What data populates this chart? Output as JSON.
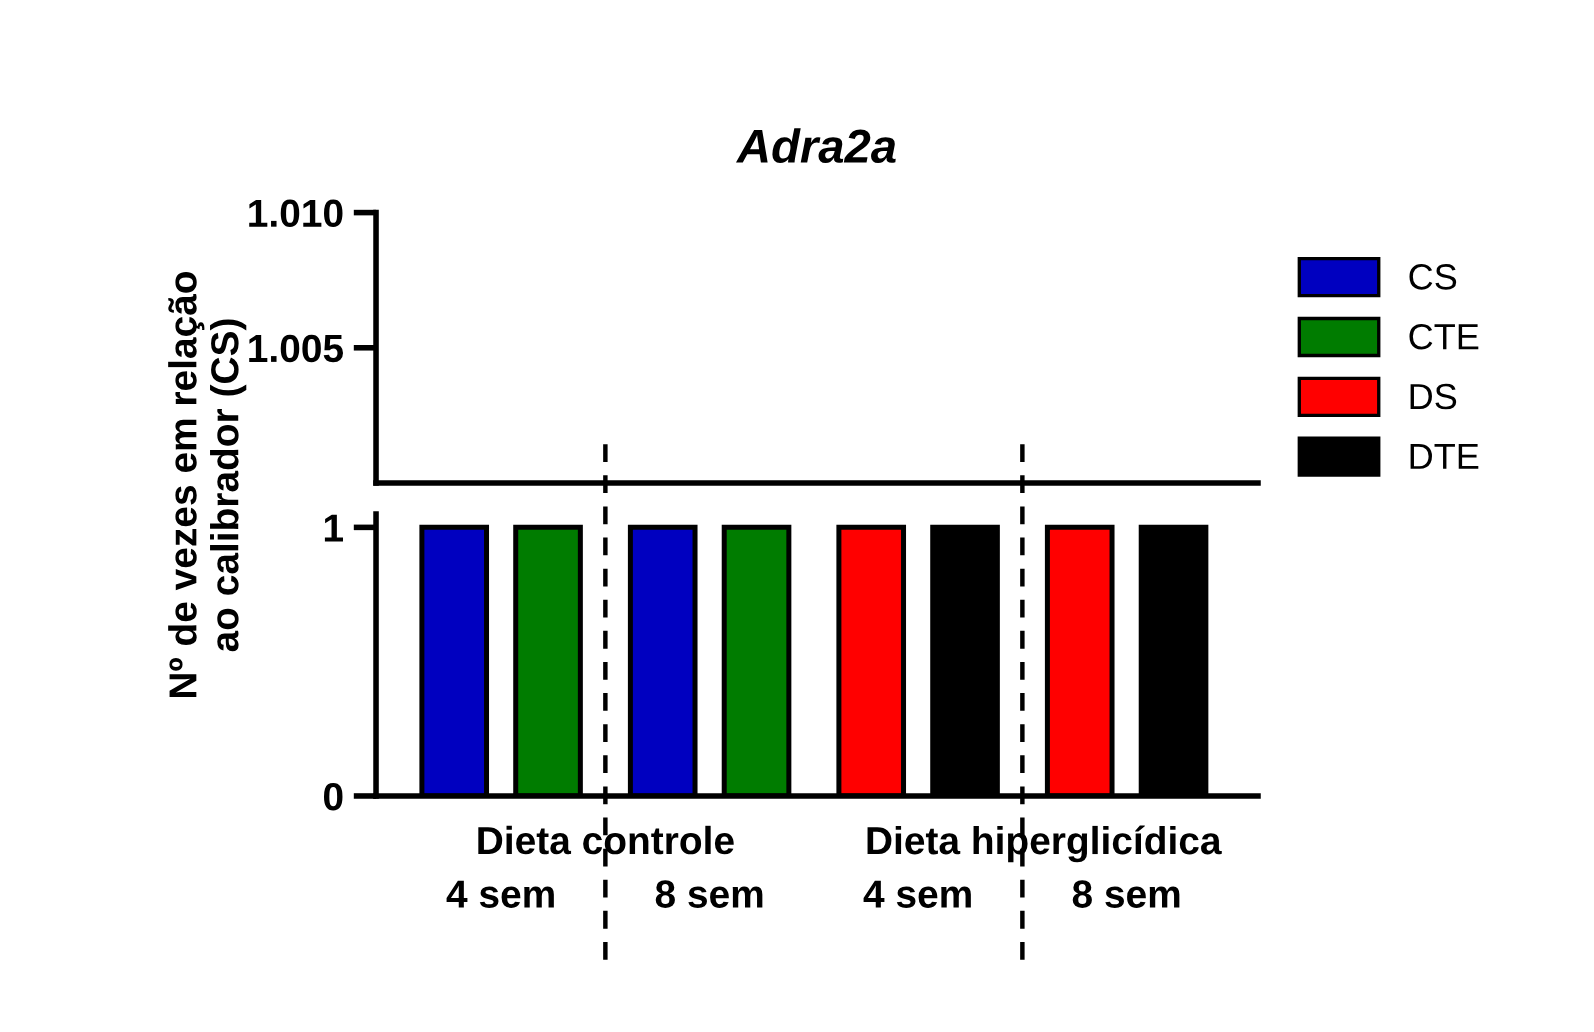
{
  "chart_data": [
    {
      "type": "bar",
      "title": "Adra2a",
      "ylabel": "Nº de vezes em relação\nao calibrador (CS)",
      "ylim": [
        1.0,
        1.01
      ],
      "yticks": [
        1.005,
        {
          "value": 1.01,
          "label": "1.010"
        }
      ],
      "tick_labels": "y",
      "legend": "right",
      "series": [
        {
          "name": "CS",
          "color": "#0000c0",
          "values": [
            null,
            null,
            null,
            null
          ]
        },
        {
          "name": "CTE",
          "color": "#007c00",
          "values": [
            null,
            null,
            null,
            null
          ]
        },
        {
          "name": "DS",
          "color": "#ff0000",
          "values": [
            null,
            null,
            null,
            null
          ]
        },
        {
          "name": "DTE",
          "color": "#000000",
          "values": [
            null,
            null,
            null,
            null
          ]
        }
      ]
    },
    {
      "type": "bar",
      "categories": [
        "4 sem",
        "8 sem",
        "4 sem",
        "8 sem"
      ],
      "ylim": [
        0,
        1.05
      ],
      "yticks": [
        0,
        1
      ],
      "series": [
        {
          "color": "#0000c0",
          "values": [
            1,
            1,
            null,
            null
          ]
        },
        {
          "color": "#007c00",
          "values": [
            1,
            1,
            null,
            null
          ]
        },
        {
          "color": "#ff0000",
          "values": [
            null,
            null,
            1,
            1
          ]
        },
        {
          "color": "#000000",
          "values": [
            null,
            null,
            1,
            1
          ]
        }
      ],
      "annotations": [
        "Dieta controle",
        "Dieta hiperglicídica"
      ]
    }
  ]
}
